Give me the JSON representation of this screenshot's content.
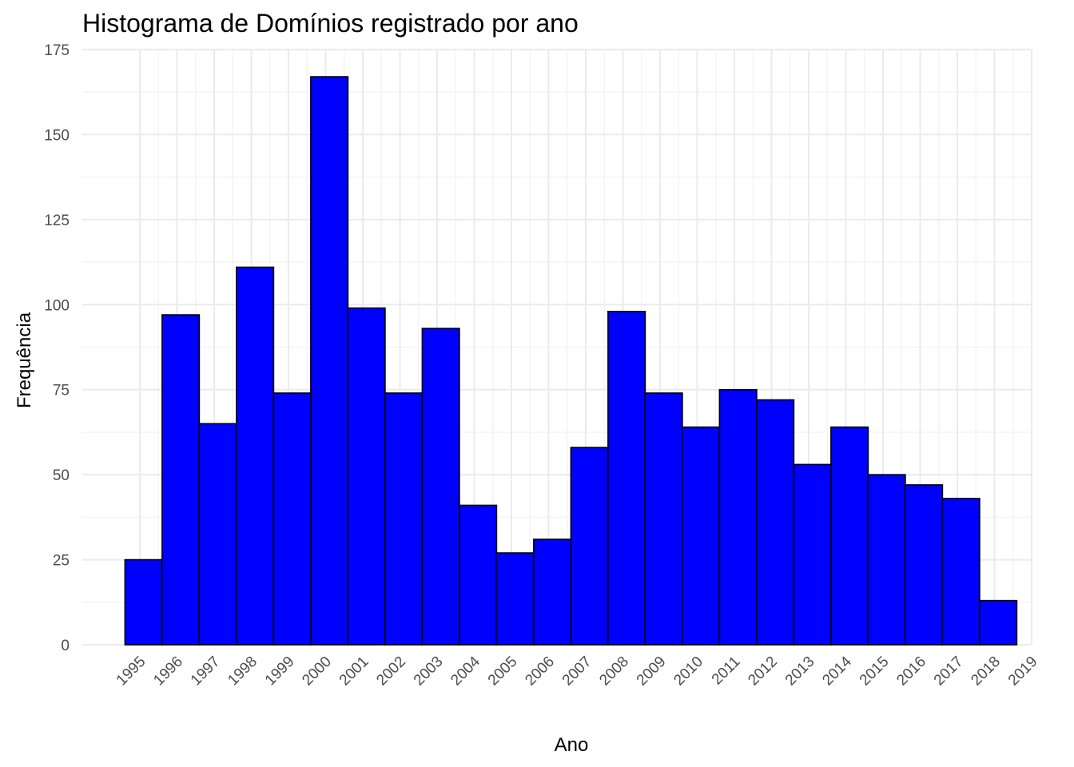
{
  "chart_data": {
    "type": "bar",
    "title": "Histograma de Domínios registrado por ano",
    "xlabel": "Ano",
    "ylabel": "Frequência",
    "categories": [
      "1995",
      "1996",
      "1997",
      "1998",
      "1999",
      "2000",
      "2001",
      "2002",
      "2003",
      "2004",
      "2005",
      "2006",
      "2007",
      "2008",
      "2009",
      "2010",
      "2011",
      "2012",
      "2013",
      "2014",
      "2015",
      "2016",
      "2017",
      "2018",
      "2019"
    ],
    "values": [
      25,
      97,
      65,
      111,
      74,
      167,
      99,
      74,
      93,
      41,
      27,
      31,
      58,
      98,
      74,
      64,
      75,
      72,
      53,
      64,
      50,
      47,
      43,
      13,
      0
    ],
    "ylim": [
      0,
      175
    ],
    "yticks": [
      0,
      25,
      50,
      75,
      100,
      125,
      150,
      175
    ],
    "bar_color": "#0000ff",
    "bar_outline": "#000000",
    "grid": true,
    "legend": "none"
  }
}
